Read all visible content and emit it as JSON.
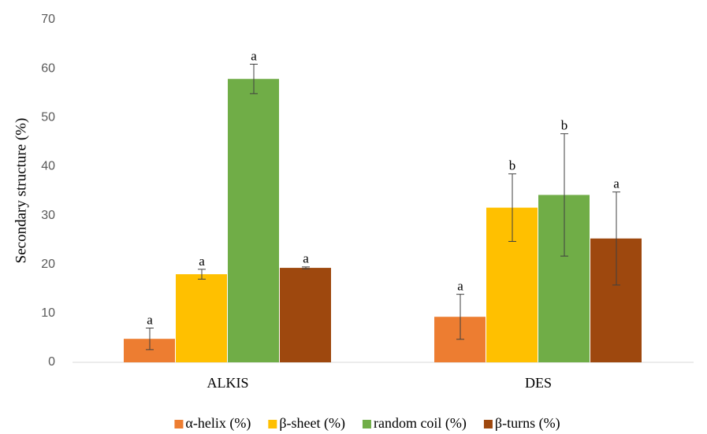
{
  "chart_data": {
    "type": "bar",
    "y_label": "Secondary structure (%)",
    "categories": [
      "ALKIS",
      "DES"
    ],
    "series": [
      {
        "name": "α-helix (%)",
        "color": "#ED7D31",
        "values": [
          4.8,
          9.3
        ],
        "errors": [
          2.2,
          4.6
        ],
        "annotations": [
          "a",
          "a"
        ]
      },
      {
        "name": "β-sheet (%)",
        "color": "#FFC000",
        "values": [
          18.0,
          31.6
        ],
        "errors": [
          1.0,
          6.9
        ],
        "annotations": [
          "a",
          "b"
        ]
      },
      {
        "name": "random coil (%)",
        "color": "#70AD47",
        "values": [
          57.9,
          34.2
        ],
        "errors": [
          3.0,
          12.5
        ],
        "annotations": [
          "a",
          "b"
        ]
      },
      {
        "name": "β-turns (%)",
        "color": "#9E480E",
        "values": [
          19.3,
          25.3
        ],
        "errors": [
          0.2,
          9.5
        ],
        "annotations": [
          "a",
          "a"
        ]
      }
    ],
    "ylim": [
      0,
      70
    ],
    "yticks": [
      0,
      10,
      20,
      30,
      40,
      50,
      60,
      70
    ],
    "grid": false,
    "legend": "bottom"
  }
}
